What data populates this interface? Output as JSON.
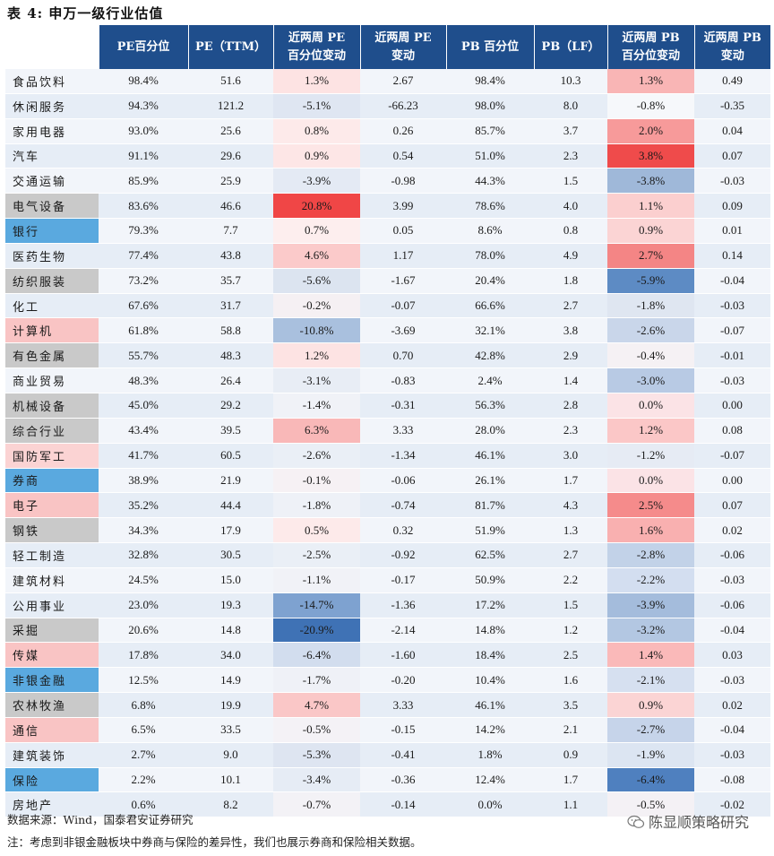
{
  "title": "表 4: 申万一级行业估值",
  "columns": [
    "",
    "PE百分位",
    "PE（TTM）",
    "近两周 PE 百分位变动",
    "近两周 PE 变动",
    "PB 百分位",
    "PB（LF）",
    "近两周 PB 百分位变动",
    "近两周 PB 变动"
  ],
  "column_lines": [
    [
      "",
      ""
    ],
    [
      "PE百分位",
      ""
    ],
    [
      "PE（TTM）",
      ""
    ],
    [
      "近两周 PE",
      "百分位变动"
    ],
    [
      "近两周 PE",
      "变动"
    ],
    [
      "PB 百分位",
      ""
    ],
    [
      "PB（LF）",
      ""
    ],
    [
      "近两周 PB",
      "百分位变动"
    ],
    [
      "近两周 PB",
      "变动"
    ]
  ],
  "rows": [
    {
      "name": "食品饮料",
      "pe_pct": "98.4%",
      "pe": "51.6",
      "pe_pct_chg": "1.3%",
      "pe_chg": "2.67",
      "pb_pct": "98.4%",
      "pb": "10.3",
      "pb_pct_chg": "1.3%",
      "pb_chg": "0.49",
      "name_bg": "",
      "pe_pct_chg_bg": "#fde3e3",
      "pb_pct_chg_bg": "#f9b5b5"
    },
    {
      "name": "休闲服务",
      "pe_pct": "94.3%",
      "pe": "121.2",
      "pe_pct_chg": "-5.1%",
      "pe_chg": "-66.23",
      "pb_pct": "98.0%",
      "pb": "8.0",
      "pb_pct_chg": "-0.8%",
      "pb_chg": "-0.35",
      "name_bg": "",
      "pe_pct_chg_bg": "#dfe6f2",
      "pb_pct_chg_bg": "#f6f8fb"
    },
    {
      "name": "家用电器",
      "pe_pct": "93.0%",
      "pe": "25.6",
      "pe_pct_chg": "0.8%",
      "pe_chg": "0.26",
      "pb_pct": "85.7%",
      "pb": "3.7",
      "pb_pct_chg": "2.0%",
      "pb_chg": "0.04",
      "name_bg": "",
      "pe_pct_chg_bg": "#fdeaea",
      "pb_pct_chg_bg": "#f79a9a"
    },
    {
      "name": "汽车",
      "pe_pct": "91.1%",
      "pe": "29.6",
      "pe_pct_chg": "0.9%",
      "pe_chg": "0.54",
      "pb_pct": "51.0%",
      "pb": "2.3",
      "pb_pct_chg": "3.8%",
      "pb_chg": "0.07",
      "name_bg": "",
      "pe_pct_chg_bg": "#fde6e6",
      "pb_pct_chg_bg": "#ef4b4b"
    },
    {
      "name": "交通运输",
      "pe_pct": "85.9%",
      "pe": "25.9",
      "pe_pct_chg": "-3.9%",
      "pe_chg": "-0.98",
      "pb_pct": "44.3%",
      "pb": "1.5",
      "pb_pct_chg": "-3.8%",
      "pb_chg": "-0.03",
      "name_bg": "",
      "pe_pct_chg_bg": "#e4eaf4",
      "pb_pct_chg_bg": "#9fb8d9"
    },
    {
      "name": "电气设备",
      "pe_pct": "83.6%",
      "pe": "46.6",
      "pe_pct_chg": "20.8%",
      "pe_chg": "3.99",
      "pb_pct": "78.6%",
      "pb": "4.0",
      "pb_pct_chg": "1.1%",
      "pb_chg": "0.09",
      "name_bg": "#c9c9c9",
      "pe_pct_chg_bg": "#f04646",
      "pb_pct_chg_bg": "#fbcfcf"
    },
    {
      "name": "银行",
      "pe_pct": "79.3%",
      "pe": "7.7",
      "pe_pct_chg": "0.7%",
      "pe_chg": "0.05",
      "pb_pct": "8.6%",
      "pb": "0.8",
      "pb_pct_chg": "0.9%",
      "pb_chg": "0.01",
      "name_bg": "#5aa9df",
      "pe_pct_chg_bg": "#fdeeee",
      "pb_pct_chg_bg": "#fbd4d4"
    },
    {
      "name": "医药生物",
      "pe_pct": "77.4%",
      "pe": "43.8",
      "pe_pct_chg": "4.6%",
      "pe_chg": "1.17",
      "pb_pct": "78.0%",
      "pb": "4.9",
      "pb_pct_chg": "2.7%",
      "pb_chg": "0.14",
      "name_bg": "",
      "pe_pct_chg_bg": "#fbcaca",
      "pb_pct_chg_bg": "#f48585"
    },
    {
      "name": "纺织服装",
      "pe_pct": "73.2%",
      "pe": "35.7",
      "pe_pct_chg": "-5.6%",
      "pe_chg": "-1.67",
      "pb_pct": "20.4%",
      "pb": "1.8",
      "pb_pct_chg": "-5.9%",
      "pb_chg": "-0.04",
      "name_bg": "#c9c9c9",
      "pe_pct_chg_bg": "#dce4f0",
      "pb_pct_chg_bg": "#5d8bc4"
    },
    {
      "name": "化工",
      "pe_pct": "67.6%",
      "pe": "31.7",
      "pe_pct_chg": "-0.2%",
      "pe_chg": "-0.07",
      "pb_pct": "66.6%",
      "pb": "2.7",
      "pb_pct_chg": "-1.8%",
      "pb_chg": "-0.03",
      "name_bg": "",
      "pe_pct_chg_bg": "#f5f0f3",
      "pb_pct_chg_bg": "#dfe6f1"
    },
    {
      "name": "计算机",
      "pe_pct": "61.8%",
      "pe": "58.8",
      "pe_pct_chg": "-10.8%",
      "pe_chg": "-3.69",
      "pb_pct": "32.1%",
      "pb": "3.8",
      "pb_pct_chg": "-2.6%",
      "pb_chg": "-0.07",
      "name_bg": "#f9c4c4",
      "pe_pct_chg_bg": "#a9c0de",
      "pb_pct_chg_bg": "#c9d6ea"
    },
    {
      "name": "有色金属",
      "pe_pct": "55.7%",
      "pe": "48.3",
      "pe_pct_chg": "1.2%",
      "pe_chg": "0.70",
      "pb_pct": "42.8%",
      "pb": "2.9",
      "pb_pct_chg": "-0.4%",
      "pb_chg": "-0.01",
      "name_bg": "#c9c9c9",
      "pe_pct_chg_bg": "#fde3e3",
      "pb_pct_chg_bg": "#f5f1f4"
    },
    {
      "name": "商业贸易",
      "pe_pct": "48.3%",
      "pe": "26.4",
      "pe_pct_chg": "-3.1%",
      "pe_chg": "-0.83",
      "pb_pct": "2.4%",
      "pb": "1.4",
      "pb_pct_chg": "-3.0%",
      "pb_chg": "-0.03",
      "name_bg": "",
      "pe_pct_chg_bg": "#e8edf5",
      "pb_pct_chg_bg": "#b8cae4"
    },
    {
      "name": "机械设备",
      "pe_pct": "45.0%",
      "pe": "29.2",
      "pe_pct_chg": "-1.4%",
      "pe_chg": "-0.31",
      "pb_pct": "56.3%",
      "pb": "2.8",
      "pb_pct_chg": "0.0%",
      "pb_chg": "0.00",
      "name_bg": "#c9c9c9",
      "pe_pct_chg_bg": "#f0f2f7",
      "pb_pct_chg_bg": "#fbe3e6"
    },
    {
      "name": "综合行业",
      "pe_pct": "43.4%",
      "pe": "39.5",
      "pe_pct_chg": "6.3%",
      "pe_chg": "3.33",
      "pb_pct": "28.0%",
      "pb": "2.3",
      "pb_pct_chg": "1.2%",
      "pb_chg": "0.08",
      "name_bg": "#c9c9c9",
      "pe_pct_chg_bg": "#f9b8b8",
      "pb_pct_chg_bg": "#fbc7c7"
    },
    {
      "name": "国防军工",
      "pe_pct": "41.7%",
      "pe": "60.5",
      "pe_pct_chg": "-2.6%",
      "pe_chg": "-1.34",
      "pb_pct": "46.1%",
      "pb": "3.0",
      "pb_pct_chg": "-1.2%",
      "pb_chg": "-0.07",
      "name_bg": "#fbd3d3",
      "pe_pct_chg_bg": "#eaeff6",
      "pb_pct_chg_bg": "#e6ebf4"
    },
    {
      "name": "券商",
      "pe_pct": "38.9%",
      "pe": "21.9",
      "pe_pct_chg": "-0.1%",
      "pe_chg": "-0.06",
      "pb_pct": "26.1%",
      "pb": "1.7",
      "pb_pct_chg": "0.0%",
      "pb_chg": "0.00",
      "name_bg": "#5aa9df",
      "pe_pct_chg_bg": "#f6f1f4",
      "pb_pct_chg_bg": "#fbe3e6"
    },
    {
      "name": "电子",
      "pe_pct": "35.2%",
      "pe": "44.4",
      "pe_pct_chg": "-1.8%",
      "pe_chg": "-0.74",
      "pb_pct": "81.7%",
      "pb": "4.3",
      "pb_pct_chg": "2.5%",
      "pb_chg": "0.07",
      "name_bg": "#f9c4c4",
      "pe_pct_chg_bg": "#eef1f7",
      "pb_pct_chg_bg": "#f58b8b"
    },
    {
      "name": "钢铁",
      "pe_pct": "34.3%",
      "pe": "17.9",
      "pe_pct_chg": "0.5%",
      "pe_chg": "0.32",
      "pb_pct": "51.9%",
      "pb": "1.3",
      "pb_pct_chg": "1.6%",
      "pb_chg": "0.02",
      "name_bg": "#c9c9c9",
      "pe_pct_chg_bg": "#fdeaea",
      "pb_pct_chg_bg": "#f9b0b0"
    },
    {
      "name": "轻工制造",
      "pe_pct": "32.8%",
      "pe": "30.5",
      "pe_pct_chg": "-2.5%",
      "pe_chg": "-0.92",
      "pb_pct": "62.5%",
      "pb": "2.7",
      "pb_pct_chg": "-2.8%",
      "pb_chg": "-0.06",
      "name_bg": "",
      "pe_pct_chg_bg": "#eaeff6",
      "pb_pct_chg_bg": "#c2d2e8"
    },
    {
      "name": "建筑材料",
      "pe_pct": "24.5%",
      "pe": "15.0",
      "pe_pct_chg": "-1.1%",
      "pe_chg": "-0.17",
      "pb_pct": "50.9%",
      "pb": "2.2",
      "pb_pct_chg": "-2.2%",
      "pb_chg": "-0.03",
      "name_bg": "",
      "pe_pct_chg_bg": "#f1f2f7",
      "pb_pct_chg_bg": "#d3def0"
    },
    {
      "name": "公用事业",
      "pe_pct": "23.0%",
      "pe": "19.3",
      "pe_pct_chg": "-14.7%",
      "pe_chg": "-1.36",
      "pb_pct": "17.2%",
      "pb": "1.5",
      "pb_pct_chg": "-3.9%",
      "pb_chg": "-0.06",
      "name_bg": "",
      "pe_pct_chg_bg": "#7ea2d0",
      "pb_pct_chg_bg": "#a4bcdc"
    },
    {
      "name": "采掘",
      "pe_pct": "20.6%",
      "pe": "14.8",
      "pe_pct_chg": "-20.9%",
      "pe_chg": "-2.14",
      "pb_pct": "14.8%",
      "pb": "1.2",
      "pb_pct_chg": "-3.2%",
      "pb_chg": "-0.04",
      "name_bg": "#c9c9c9",
      "pe_pct_chg_bg": "#3f72b5",
      "pb_pct_chg_bg": "#b3c7e2"
    },
    {
      "name": "传媒",
      "pe_pct": "17.8%",
      "pe": "34.0",
      "pe_pct_chg": "-6.4%",
      "pe_chg": "-1.60",
      "pb_pct": "18.4%",
      "pb": "2.5",
      "pb_pct_chg": "1.4%",
      "pb_chg": "0.03",
      "name_bg": "#f9c4c4",
      "pe_pct_chg_bg": "#d2ddee",
      "pb_pct_chg_bg": "#fab9b9"
    },
    {
      "name": "非银金融",
      "pe_pct": "12.5%",
      "pe": "14.9",
      "pe_pct_chg": "-1.7%",
      "pe_chg": "-0.20",
      "pb_pct": "10.4%",
      "pb": "1.6",
      "pb_pct_chg": "-2.1%",
      "pb_chg": "-0.03",
      "name_bg": "#5aa9df",
      "pe_pct_chg_bg": "#eff1f7",
      "pb_pct_chg_bg": "#d6e0f0"
    },
    {
      "name": "农林牧渔",
      "pe_pct": "6.8%",
      "pe": "19.9",
      "pe_pct_chg": "4.7%",
      "pe_chg": "3.33",
      "pb_pct": "46.1%",
      "pb": "3.5",
      "pb_pct_chg": "0.9%",
      "pb_chg": "0.02",
      "name_bg": "#c9c9c9",
      "pe_pct_chg_bg": "#fac7c7",
      "pb_pct_chg_bg": "#fbd4d4"
    },
    {
      "name": "通信",
      "pe_pct": "6.5%",
      "pe": "33.5",
      "pe_pct_chg": "-0.5%",
      "pe_chg": "-0.15",
      "pb_pct": "14.2%",
      "pb": "2.1",
      "pb_pct_chg": "-2.7%",
      "pb_chg": "-0.04",
      "name_bg": "#f9c4c4",
      "pe_pct_chg_bg": "#f4f2f6",
      "pb_pct_chg_bg": "#c6d4ea"
    },
    {
      "name": "建筑装饰",
      "pe_pct": "2.7%",
      "pe": "9.0",
      "pe_pct_chg": "-5.3%",
      "pe_chg": "-0.41",
      "pb_pct": "1.8%",
      "pb": "0.9",
      "pb_pct_chg": "-1.9%",
      "pb_chg": "-0.03",
      "name_bg": "",
      "pe_pct_chg_bg": "#dee5f1",
      "pb_pct_chg_bg": "#dce5f2"
    },
    {
      "name": "保险",
      "pe_pct": "2.2%",
      "pe": "10.1",
      "pe_pct_chg": "-3.4%",
      "pe_chg": "-0.36",
      "pb_pct": "12.4%",
      "pb": "1.7",
      "pb_pct_chg": "-6.4%",
      "pb_chg": "-0.08",
      "name_bg": "#5aa9df",
      "pe_pct_chg_bg": "#e6ecf5",
      "pb_pct_chg_bg": "#4f80bf"
    },
    {
      "name": "房地产",
      "pe_pct": "0.6%",
      "pe": "8.2",
      "pe_pct_chg": "-0.7%",
      "pe_chg": "-0.14",
      "pb_pct": "0.0%",
      "pb": "1.1",
      "pb_pct_chg": "-0.5%",
      "pb_chg": "-0.02",
      "name_bg": "",
      "pe_pct_chg_bg": "#f3f2f6",
      "pb_pct_chg_bg": "#f4f1f5"
    }
  ],
  "footer": {
    "source": "数据来源：Wind，国泰君安证券研究",
    "note": "注：考虑到非银金融板块中券商与保险的差异性，我们也展示券商和保险相关数据。",
    "watermark": "陈显顺策略研究"
  }
}
